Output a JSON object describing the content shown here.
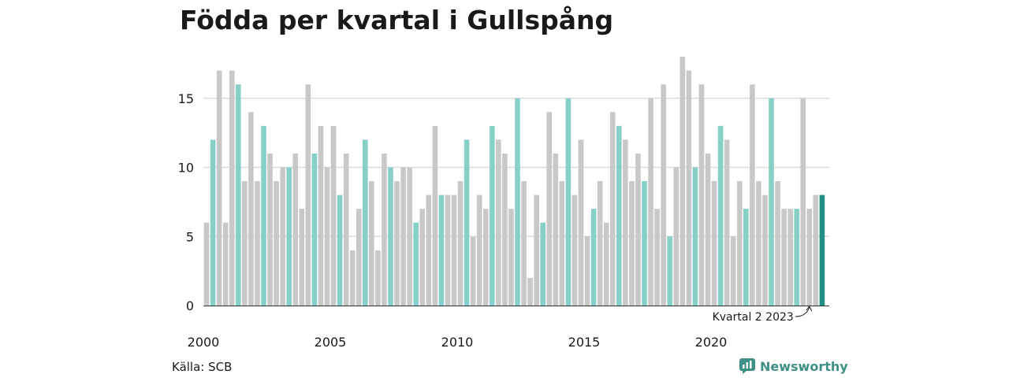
{
  "title": "Födda per kvartal i Gullspång",
  "source": "Källa: SCB",
  "brand": "Newsworthy",
  "chart_data": {
    "type": "bar",
    "title": "Födda per kvartal i Gullspång",
    "start": {
      "year": 2000,
      "quarter": 1
    },
    "x_tick_labels": [
      "2000",
      "2005",
      "2010",
      "2015",
      "2020"
    ],
    "ylim": [
      0,
      18
    ],
    "y_ticks": [
      0,
      5,
      10,
      15
    ],
    "grid": true,
    "values": [
      6,
      12,
      17,
      6,
      17,
      16,
      9,
      14,
      9,
      13,
      11,
      9,
      10,
      10,
      11,
      7,
      16,
      11,
      13,
      10,
      13,
      8,
      11,
      4,
      7,
      12,
      9,
      4,
      11,
      10,
      9,
      10,
      10,
      6,
      7,
      8,
      13,
      8,
      8,
      8,
      9,
      12,
      5,
      8,
      7,
      13,
      12,
      11,
      7,
      15,
      9,
      2,
      8,
      6,
      14,
      11,
      9,
      15,
      8,
      12,
      5,
      7,
      9,
      6,
      14,
      13,
      12,
      9,
      11,
      9,
      15,
      7,
      16,
      5,
      10,
      18,
      17,
      10,
      16,
      11,
      9,
      13,
      12,
      5,
      9,
      7,
      16,
      9,
      8,
      15,
      9,
      7,
      7,
      7,
      15,
      7,
      8,
      8
    ],
    "annotation": "Kvartal 2 2023",
    "colors": {
      "default": "#c8c8c8",
      "second_quarter": "#86d0c8",
      "latest": "#1f8f82",
      "grid": "#dddddd"
    }
  }
}
